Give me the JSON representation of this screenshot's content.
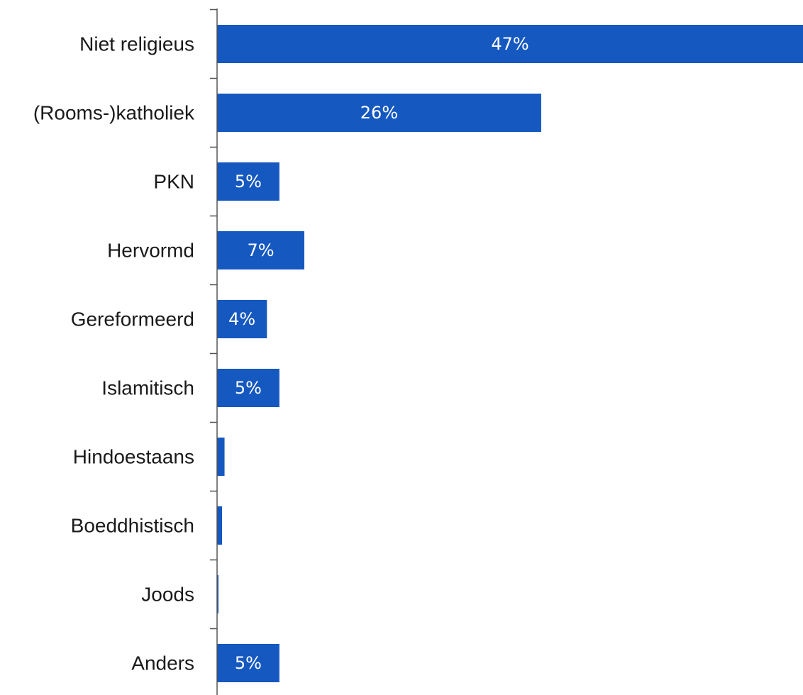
{
  "chart_data": {
    "type": "bar",
    "orientation": "horizontal",
    "categories": [
      "Niet religieus",
      "(Rooms-)katholiek",
      "PKN",
      "Hervormd",
      "Gereformeerd",
      "Islamitisch",
      "Hindoestaans",
      "Boeddhistisch",
      "Joods",
      "Anders"
    ],
    "values": [
      47,
      26,
      5,
      7,
      4,
      5,
      0.6,
      0.4,
      0.05,
      5
    ],
    "value_labels": [
      "47%",
      "26%",
      "5%",
      "7%",
      "4%",
      "5%",
      "",
      "",
      "",
      "5%"
    ],
    "title": "",
    "xlabel": "",
    "ylabel": "",
    "xlim": [
      0,
      47
    ],
    "grid": false,
    "legend": "none",
    "colors": {
      "bar": "#1558c0",
      "axis": "#555555",
      "label": "#1a1a1a",
      "value_label": "#ffffff"
    }
  }
}
